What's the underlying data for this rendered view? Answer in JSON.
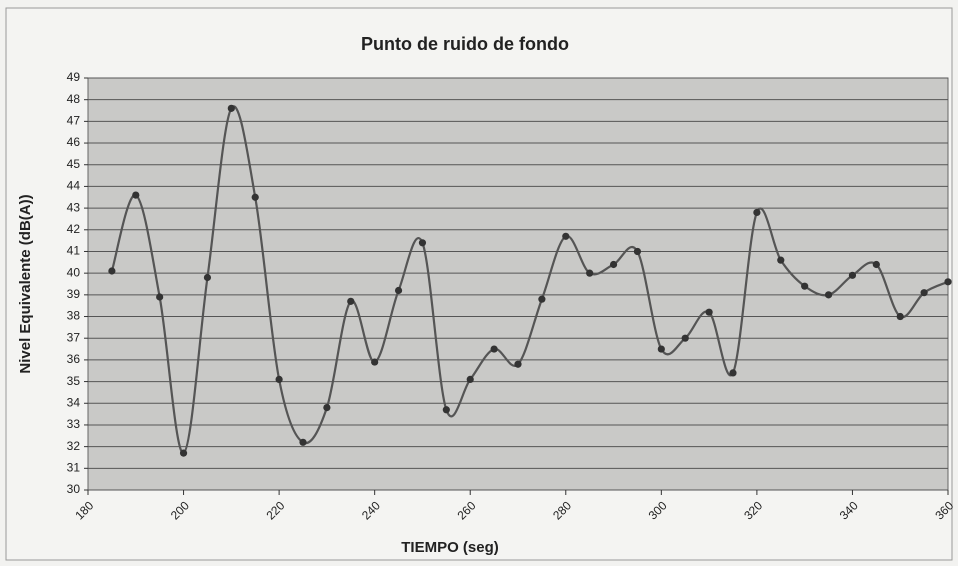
{
  "chart_data": {
    "type": "line",
    "title": "Punto de ruido de fondo",
    "x_label": "TIEMPO (seg)",
    "y_label": "Nivel Equivalente (dB(A))",
    "x": [
      185,
      190,
      195,
      200,
      205,
      210,
      215,
      220,
      225,
      230,
      235,
      240,
      245,
      250,
      255,
      260,
      265,
      270,
      275,
      280,
      285,
      290,
      295,
      300,
      305,
      310,
      315,
      320,
      325,
      330,
      335,
      340,
      345,
      350,
      355,
      360
    ],
    "series": [
      {
        "color": "#555555",
        "values": [
          40.1,
          43.6,
          38.9,
          31.7,
          39.8,
          47.6,
          43.5,
          35.1,
          32.2,
          33.8,
          38.7,
          35.9,
          39.2,
          41.4,
          33.7,
          35.1,
          36.5,
          35.8,
          38.8,
          41.7,
          40.0,
          40.4,
          41.0,
          36.5,
          37.0,
          38.2,
          35.4,
          42.8,
          40.6,
          39.4,
          39.0,
          39.9,
          40.4,
          38.0,
          39.1,
          39.6
        ]
      }
    ],
    "xlim": [
      180,
      360
    ],
    "xticks": [
      180,
      200,
      220,
      240,
      260,
      280,
      300,
      320,
      340,
      360
    ],
    "ylim": [
      30,
      49
    ],
    "yticks": [
      30,
      31,
      32,
      33,
      34,
      35,
      36,
      37,
      38,
      39,
      40,
      41,
      42,
      43,
      44,
      45,
      46,
      47,
      48,
      49
    ],
    "grid": true,
    "smooth": true
  }
}
